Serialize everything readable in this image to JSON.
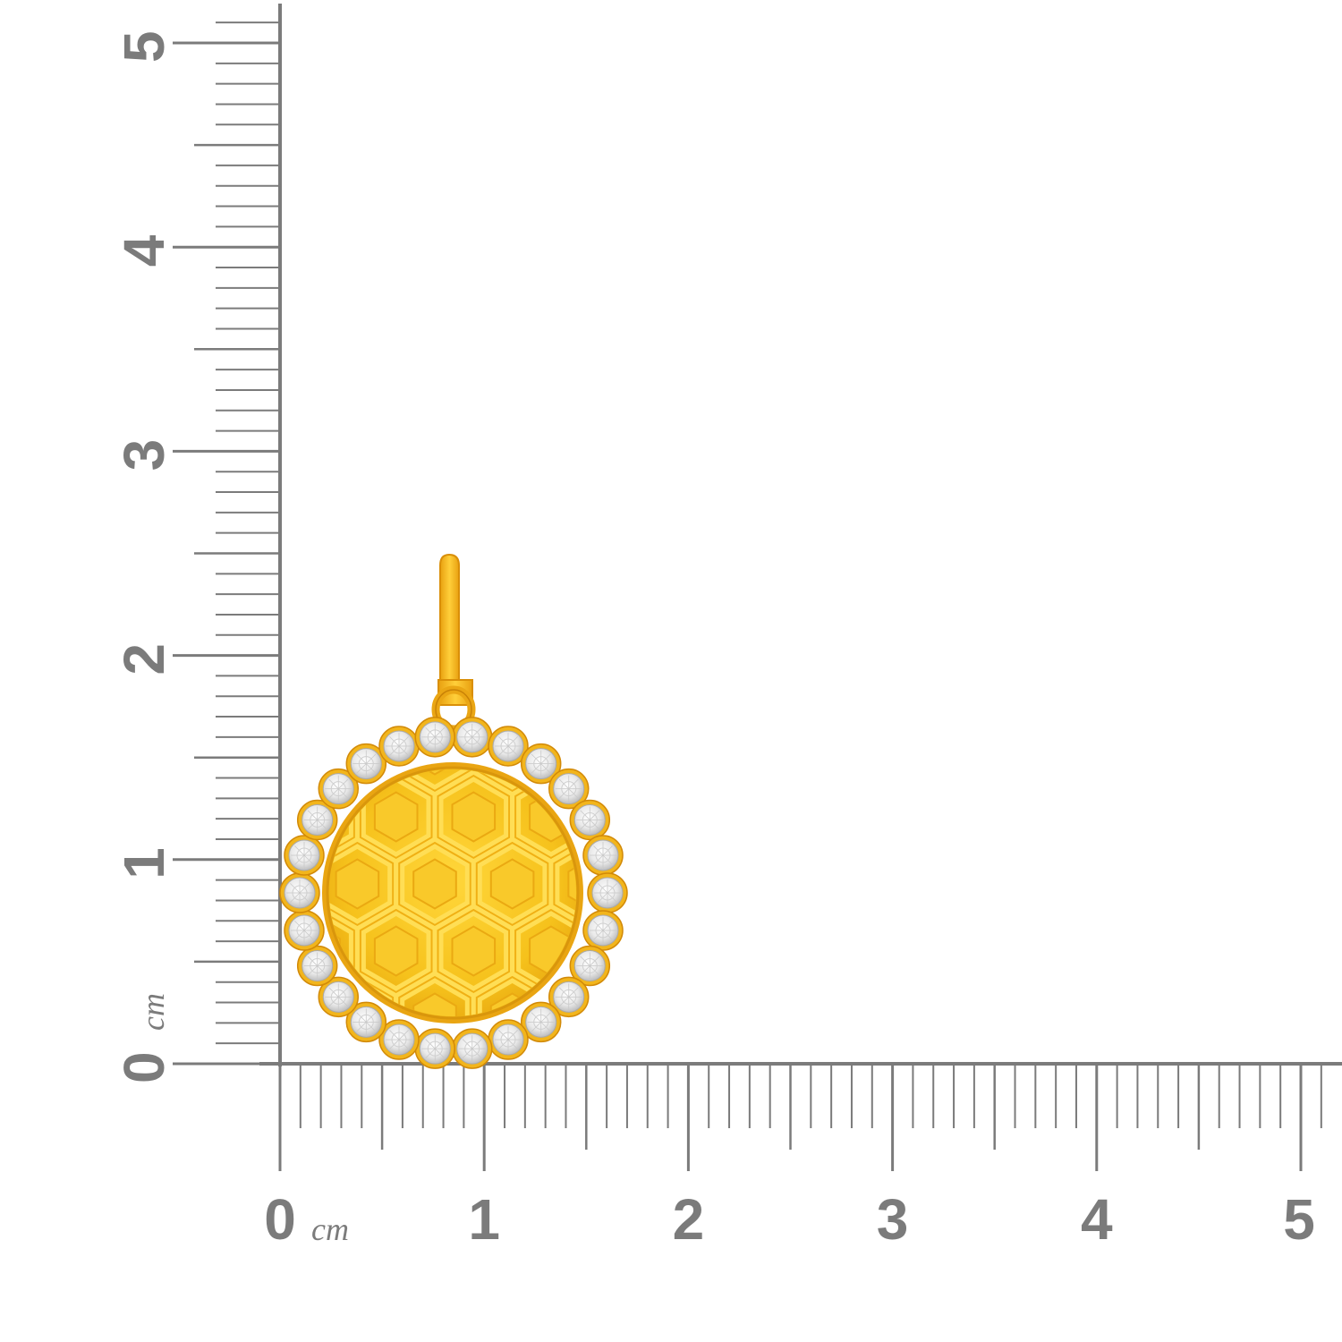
{
  "ruler": {
    "unit_label": "cm",
    "x_labels": [
      "0",
      "1",
      "2",
      "3",
      "4",
      "5"
    ],
    "y_labels": [
      "0",
      "1",
      "2",
      "3",
      "4",
      "5"
    ],
    "color": "#7b7b7b"
  },
  "pendant": {
    "metal_color": "#f2b51c",
    "metal_dark": "#e09a0c",
    "stone_color": "#f4f4f4",
    "stone_count": 26
  }
}
